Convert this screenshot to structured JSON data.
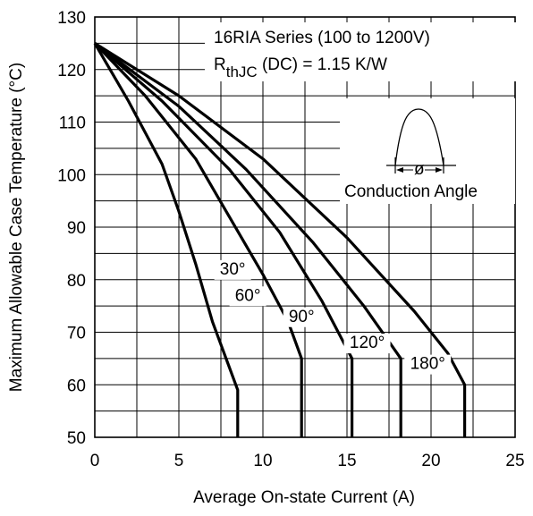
{
  "chart_data": {
    "type": "line",
    "title": "16RIA Series (100 to 1200V)",
    "subtitle_main": "R",
    "subtitle_sub": "thJC",
    "subtitle_rest": " (DC) = 1.15 K/W",
    "inset_label": "Conduction Angle",
    "inset_symbol": "ø",
    "xlabel": "Average On-state Current (A)",
    "ylabel": "Maximum Allowable Case Temperature (°C)",
    "xlim": [
      0,
      25
    ],
    "ylim": [
      50,
      130
    ],
    "x_ticks": [
      "0",
      "5",
      "10",
      "15",
      "20",
      "25"
    ],
    "y_ticks": [
      "50",
      "60",
      "70",
      "80",
      "90",
      "100",
      "110",
      "120",
      "130"
    ],
    "grid": true,
    "series": [
      {
        "name": "30°",
        "x": [
          0,
          2,
          4,
          5,
          6,
          7,
          8.5,
          8.5
        ],
        "y": [
          125,
          114,
          102,
          93,
          83,
          72,
          59,
          50
        ]
      },
      {
        "name": "60°",
        "x": [
          0,
          3,
          6,
          8,
          10,
          11.5,
          12.3,
          12.3
        ],
        "y": [
          125,
          115,
          103,
          92,
          81,
          72,
          65,
          50
        ]
      },
      {
        "name": "90°",
        "x": [
          0,
          4,
          8,
          11,
          13.5,
          15.3,
          15.3
        ],
        "y": [
          125,
          114,
          101,
          89,
          76,
          65,
          50
        ]
      },
      {
        "name": "120°",
        "x": [
          0,
          5,
          9,
          13,
          16,
          18.2,
          18.2
        ],
        "y": [
          125,
          113,
          101,
          87,
          75,
          65,
          50
        ]
      },
      {
        "name": "180°",
        "x": [
          0,
          5,
          10,
          15,
          19,
          21,
          22,
          22
        ],
        "y": [
          125,
          115,
          103,
          88,
          74,
          66,
          60,
          50
        ]
      }
    ]
  }
}
